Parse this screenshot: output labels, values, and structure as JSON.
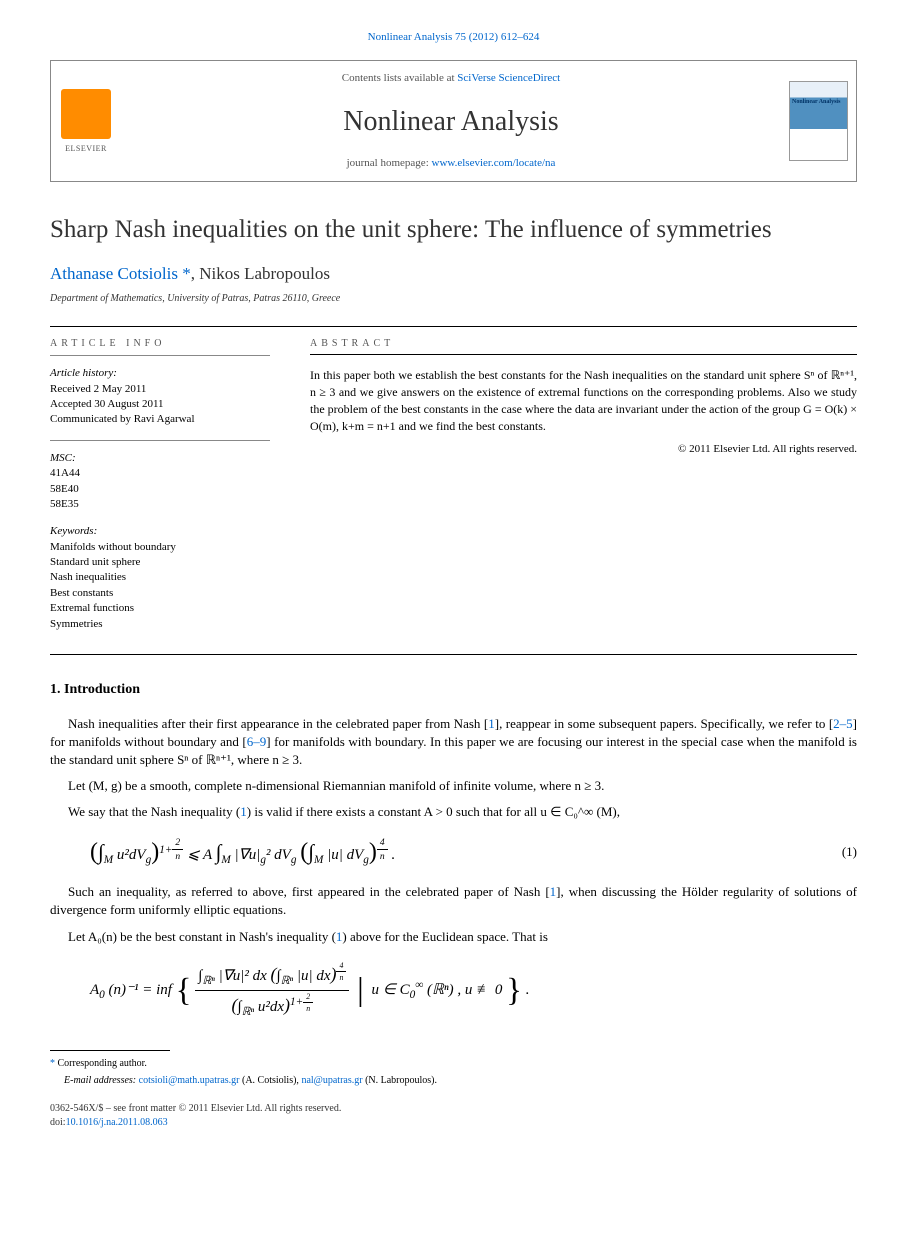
{
  "journal_ref": "Nonlinear Analysis 75 (2012) 612–624",
  "header": {
    "contents_prefix": "Contents lists available at ",
    "contents_link": "SciVerse ScienceDirect",
    "journal_title": "Nonlinear Analysis",
    "homepage_prefix": "journal homepage: ",
    "homepage_link": "www.elsevier.com/locate/na",
    "publisher": "ELSEVIER",
    "cover_text": "Nonlinear Analysis"
  },
  "article": {
    "title": "Sharp Nash inequalities on the unit sphere: The influence of symmetries",
    "authors_html": "Athanase Cotsiolis",
    "author2": ", Nikos Labropoulos",
    "affiliation": "Department of Mathematics, University of Patras, Patras 26110, Greece"
  },
  "info": {
    "label": "ARTICLE INFO",
    "history_title": "Article history:",
    "received": "Received 2 May 2011",
    "accepted": "Accepted 30 August 2011",
    "communicated": "Communicated by Ravi Agarwal",
    "msc_title": "MSC:",
    "msc1": "41A44",
    "msc2": "58E40",
    "msc3": "58E35",
    "keywords_title": "Keywords:",
    "kw1": "Manifolds without boundary",
    "kw2": "Standard unit sphere",
    "kw3": "Nash inequalities",
    "kw4": "Best constants",
    "kw5": "Extremal functions",
    "kw6": "Symmetries"
  },
  "abstract": {
    "label": "ABSTRACT",
    "text": "In this paper both we establish the best constants for the Nash inequalities on the standard unit sphere Sⁿ of ℝⁿ⁺¹, n ≥ 3 and we give answers on the existence of extremal functions on the corresponding problems. Also we study the problem of the best constants in the case where the data are invariant under the action of the group G = O(k) × O(m), k+m = n+1 and we find the best constants.",
    "copyright": "© 2011 Elsevier Ltd. All rights reserved."
  },
  "intro": {
    "heading": "1.  Introduction",
    "p1a": "Nash inequalities after their first appearance in the celebrated paper from Nash [",
    "p1_ref1": "1",
    "p1b": "], reappear in some subsequent papers. Specifically, we refer to [",
    "p1_ref2": "2–5",
    "p1c": "] for manifolds without boundary and [",
    "p1_ref3": "6–9",
    "p1d": "] for manifolds with boundary. In this paper we are focusing our interest in the special case when the manifold is the standard unit sphere Sⁿ of ℝⁿ⁺¹, where n ≥ 3.",
    "p2": "Let (M, g) be a smooth, complete n-dimensional Riemannian manifold of infinite volume, where n ≥ 3.",
    "p3a": "We say that the Nash inequality (",
    "p3_ref": "1",
    "p3b": ") is valid if there exists a constant A > 0 such that for all u ∈ C₀^∞ (M),",
    "p4a": "Such an inequality, as referred to above, first appeared in the celebrated paper of Nash [",
    "p4_ref": "1",
    "p4b": "], when discussing the Hölder regularity of solutions of divergence form uniformly elliptic equations.",
    "p5a": "Let A₀(n) be the best constant in Nash's inequality (",
    "p5_ref": "1",
    "p5b": ") above for the Euclidean space. That is"
  },
  "equations": {
    "eq1_num": "(1)"
  },
  "footnotes": {
    "corr": "Corresponding author.",
    "emails_label": "E-mail addresses: ",
    "email1": "cotsioli@math.upatras.gr",
    "email1_who": " (A. Cotsiolis), ",
    "email2": "nal@upatras.gr",
    "email2_who": " (N. Labropoulos)."
  },
  "bottom": {
    "line1": "0362-546X/$ – see front matter © 2011 Elsevier Ltd. All rights reserved.",
    "doi_label": "doi:",
    "doi": "10.1016/j.na.2011.08.063"
  },
  "colors": {
    "link": "#0066cc",
    "elsevier_orange": "#ff8c00",
    "text": "#000000",
    "gray": "#555555"
  }
}
